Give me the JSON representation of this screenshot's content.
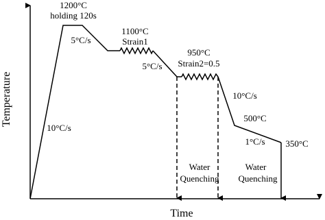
{
  "axes": {
    "y_label": "Temperature",
    "x_label": "Time"
  },
  "stages": {
    "start": {
      "temperature": "1200°C",
      "holding": "holding 120s"
    },
    "cool1": {
      "rate": "5°C/s"
    },
    "deform1": {
      "temperature": "1100°C",
      "strain": "Strain1"
    },
    "cool2": {
      "rate": "5°C/s"
    },
    "deform2": {
      "temperature": "950°C",
      "strain": "Strain2=0.5"
    },
    "cool3": {
      "rate": "10°C/s"
    },
    "hold2": {
      "temperature": "500°C"
    },
    "cool4": {
      "rate": "1°C/s"
    },
    "end": {
      "temperature": "350°C"
    },
    "heating": {
      "rate": "10°C/s"
    }
  },
  "quench": [
    {
      "line1": "Water",
      "line2": "Quenching"
    },
    {
      "line1": "Water",
      "line2": "Quenching"
    }
  ]
}
